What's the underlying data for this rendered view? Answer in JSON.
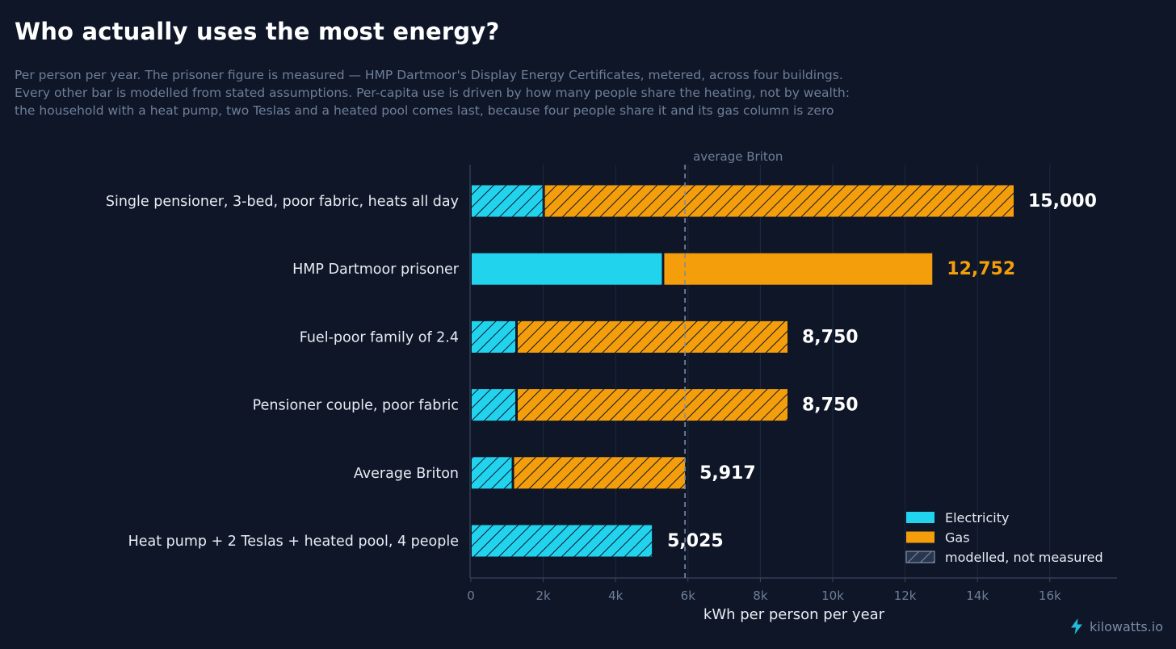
{
  "title": "Who actually uses the most energy?",
  "subtitle_lines": [
    "Per person per year. The prisoner figure is measured — HMP Dartmoor's Display Energy Certificates, metered, across four buildings.",
    "Every other bar is modelled from stated assumptions. Per-capita use is driven by how many people share the heating, not by wealth:",
    "the household with a heat pump, two Teslas and a heated pool comes last, because four people share it and its gas column is zero"
  ],
  "brand": {
    "icon": "lightning-bolt-icon",
    "label": "kilowatts.io"
  },
  "colors": {
    "background": "#0e1628",
    "electricity": "#22d3ee",
    "gas": "#f59e0b",
    "grid": "#1f2a3f",
    "axis": "#3a4760",
    "tick_text": "#6f7f98",
    "label_text": "#e8ecf2",
    "highlight_value": "#f59e0b"
  },
  "chart_data": {
    "type": "bar",
    "orientation": "horizontal",
    "stacked": true,
    "title": "Who actually uses the most energy?",
    "xlabel": "kWh per person per year",
    "ylabel": "",
    "xlim": [
      0,
      17800
    ],
    "xticks": [
      0,
      2000,
      4000,
      6000,
      8000,
      10000,
      12000,
      14000,
      16000
    ],
    "xtick_labels": [
      "0",
      "2k",
      "4k",
      "6k",
      "8k",
      "10k",
      "12k",
      "14k",
      "16k"
    ],
    "grid": "vertical",
    "categories": [
      "Single pensioner, 3-bed, poor fabric, heats all day",
      "HMP Dartmoor prisoner",
      "Fuel-poor family of 2.4",
      "Pensioner couple, poor fabric",
      "Average Briton",
      "Heat pump + 2 Teslas + heated pool, 4 people"
    ],
    "series": [
      {
        "name": "Electricity",
        "values": [
          2000,
          5300,
          1250,
          1250,
          1150,
          5025
        ]
      },
      {
        "name": "Gas",
        "values": [
          13000,
          7452,
          7500,
          7500,
          4767,
          0
        ]
      }
    ],
    "totals": [
      15000,
      12752,
      8750,
      8750,
      5917,
      5025
    ],
    "total_labels": [
      "15,000",
      "12,752",
      "8,750",
      "8,750",
      "5,917",
      "5,025"
    ],
    "measured": [
      false,
      true,
      false,
      false,
      false,
      false
    ],
    "reference_line": {
      "value": 5917,
      "label": "average Briton"
    },
    "legend": {
      "placement": "bottom-right",
      "entries": [
        "Electricity",
        "Gas",
        "modelled, not measured"
      ]
    }
  }
}
